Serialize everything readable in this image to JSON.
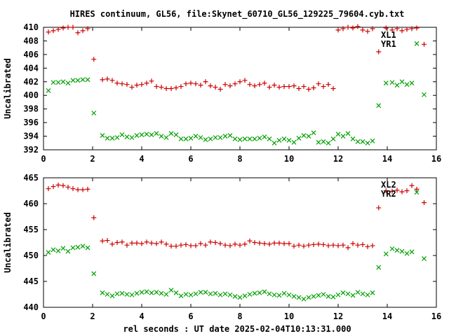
{
  "chart_data": {
    "type": "scatter",
    "title": "HIRES continuum, GL56, file:Skynet_60710_GL56_129225_79604.cyb.txt",
    "xlabel": "rel seconds : UT date 2025-02-04T10:13:31.000",
    "colors": {
      "red": "#cc0000",
      "green": "#00a000"
    },
    "panels": [
      {
        "ylabel": "Uncalibrated",
        "xlim": [
          0,
          16
        ],
        "ylim": [
          392,
          410
        ],
        "xticks": [
          "0",
          "2",
          "4",
          "6",
          "8",
          "10",
          "12",
          "14",
          "16"
        ],
        "yticks": [
          "392",
          "394",
          "396",
          "398",
          "400",
          "402",
          "404",
          "406",
          "408",
          "410"
        ],
        "x": [
          0.2,
          0.4,
          0.6,
          0.8,
          1.0,
          1.2,
          1.4,
          1.6,
          1.8,
          2.05,
          2.4,
          2.6,
          2.8,
          3.0,
          3.2,
          3.4,
          3.6,
          3.8,
          4.0,
          4.2,
          4.4,
          4.6,
          4.8,
          5.0,
          5.2,
          5.4,
          5.6,
          5.8,
          6.0,
          6.2,
          6.4,
          6.6,
          6.8,
          7.0,
          7.2,
          7.4,
          7.6,
          7.8,
          8.0,
          8.2,
          8.4,
          8.6,
          8.8,
          9.0,
          9.2,
          9.4,
          9.6,
          9.8,
          10.0,
          10.2,
          10.4,
          10.6,
          10.8,
          11.0,
          11.2,
          11.4,
          11.6,
          11.8,
          12.0,
          12.2,
          12.4,
          12.6,
          12.8,
          13.0,
          13.2,
          13.4,
          13.65,
          13.95,
          14.2,
          14.4,
          14.6,
          14.8,
          15.0,
          15.2,
          15.5
        ],
        "series": [
          {
            "name": "XL1",
            "color_key": "red",
            "marker": "plus",
            "values": [
              409.3,
              409.5,
              409.7,
              409.9,
              410.0,
              410.0,
              409.2,
              409.5,
              409.8,
              405.3,
              402.3,
              402.4,
              402.2,
              401.8,
              401.7,
              401.6,
              401.2,
              401.5,
              401.6,
              401.8,
              402.1,
              401.3,
              401.2,
              401.0,
              401.0,
              401.1,
              401.3,
              401.7,
              401.8,
              401.7,
              401.5,
              402.0,
              401.4,
              401.2,
              400.9,
              401.6,
              401.4,
              401.7,
              402.0,
              402.2,
              401.6,
              401.4,
              401.6,
              401.8,
              401.2,
              401.5,
              401.2,
              401.3,
              401.3,
              401.4,
              401.0,
              401.3,
              400.9,
              401.1,
              401.7,
              401.3,
              401.6,
              401.0,
              409.6,
              409.8,
              410.0,
              409.9,
              410.1,
              409.6,
              409.4,
              409.8,
              406.4,
              409.9,
              409.6,
              409.8,
              409.5,
              409.7,
              409.8,
              409.9,
              407.5
            ]
          },
          {
            "name": "YR1",
            "color_key": "green",
            "marker": "x",
            "values": [
              400.7,
              401.9,
              401.9,
              402.0,
              401.8,
              402.2,
              402.2,
              402.3,
              402.3,
              397.4,
              394.1,
              393.7,
              393.7,
              393.8,
              394.2,
              393.9,
              393.8,
              394.1,
              394.2,
              394.3,
              394.2,
              394.4,
              394.0,
              393.8,
              394.4,
              394.2,
              393.6,
              393.6,
              393.7,
              394.0,
              393.8,
              393.5,
              393.6,
              393.8,
              393.8,
              394.0,
              394.1,
              393.6,
              393.5,
              393.6,
              393.6,
              393.6,
              393.7,
              393.9,
              393.6,
              393.0,
              393.4,
              393.6,
              393.4,
              393.1,
              393.7,
              394.1,
              394.0,
              394.5,
              393.1,
              393.2,
              393.0,
              393.6,
              394.3,
              394.0,
              394.4,
              393.6,
              393.2,
              393.2,
              393.0,
              393.3,
              398.5,
              401.8,
              401.9,
              401.5,
              402.0,
              401.6,
              401.8,
              407.6,
              400.1
            ]
          }
        ]
      },
      {
        "ylabel": "Uncalibrated",
        "xlim": [
          0,
          16
        ],
        "ylim": [
          440,
          465
        ],
        "xticks": [
          "0",
          "2",
          "4",
          "6",
          "8",
          "10",
          "12",
          "14",
          "16"
        ],
        "yticks": [
          "440",
          "445",
          "450",
          "455",
          "460",
          "465"
        ],
        "x": [
          0.2,
          0.4,
          0.6,
          0.8,
          1.0,
          1.2,
          1.4,
          1.6,
          1.8,
          2.05,
          2.4,
          2.6,
          2.8,
          3.0,
          3.2,
          3.4,
          3.6,
          3.8,
          4.0,
          4.2,
          4.4,
          4.6,
          4.8,
          5.0,
          5.2,
          5.4,
          5.6,
          5.8,
          6.0,
          6.2,
          6.4,
          6.6,
          6.8,
          7.0,
          7.2,
          7.4,
          7.6,
          7.8,
          8.0,
          8.2,
          8.4,
          8.6,
          8.8,
          9.0,
          9.2,
          9.4,
          9.6,
          9.8,
          10.0,
          10.2,
          10.4,
          10.6,
          10.8,
          11.0,
          11.2,
          11.4,
          11.6,
          11.8,
          12.0,
          12.2,
          12.4,
          12.6,
          12.8,
          13.0,
          13.2,
          13.4,
          13.65,
          13.95,
          14.2,
          14.4,
          14.6,
          14.8,
          15.0,
          15.2,
          15.5
        ],
        "series": [
          {
            "name": "XL2",
            "color_key": "red",
            "marker": "plus",
            "values": [
              462.9,
              463.3,
              463.6,
              463.5,
              463.2,
              462.9,
              462.7,
              462.7,
              462.8,
              457.3,
              452.8,
              452.9,
              452.2,
              452.5,
              452.6,
              452.0,
              452.4,
              452.4,
              452.3,
              452.6,
              452.4,
              452.3,
              452.6,
              452.2,
              451.8,
              451.8,
              452.0,
              452.1,
              451.9,
              451.9,
              452.3,
              452.0,
              452.6,
              452.5,
              452.3,
              452.0,
              451.9,
              452.2,
              452.0,
              452.2,
              452.8,
              452.5,
              452.4,
              452.3,
              452.2,
              452.4,
              452.4,
              452.3,
              452.3,
              451.8,
              452.0,
              451.8,
              452.0,
              452.1,
              452.2,
              452.1,
              451.9,
              452.0,
              451.9,
              452.0,
              451.5,
              452.3,
              452.0,
              452.1,
              451.7,
              451.9,
              459.2,
              462.5,
              462.4,
              462.6,
              462.3,
              462.5,
              463.5,
              462.8,
              460.2
            ]
          },
          {
            "name": "YR2",
            "color_key": "green",
            "marker": "x",
            "values": [
              450.6,
              451.1,
              450.9,
              451.4,
              450.8,
              451.5,
              451.6,
              451.8,
              451.5,
              446.5,
              442.8,
              442.5,
              442.2,
              442.6,
              442.7,
              442.5,
              442.4,
              442.7,
              442.9,
              443.0,
              442.8,
              442.9,
              442.7,
              442.5,
              443.3,
              442.8,
              442.2,
              442.5,
              442.4,
              442.6,
              442.9,
              442.9,
              442.6,
              442.7,
              442.4,
              442.6,
              442.4,
              442.1,
              441.9,
              442.2,
              442.5,
              442.7,
              442.8,
              443.0,
              442.6,
              442.4,
              442.3,
              442.7,
              442.4,
              442.1,
              441.9,
              441.6,
              441.9,
              442.1,
              442.3,
              442.5,
              442.1,
              442.0,
              442.4,
              442.8,
              442.6,
              442.3,
              442.9,
              442.6,
              442.4,
              442.8,
              447.7,
              450.3,
              451.3,
              451.0,
              450.8,
              450.4,
              450.7,
              462.2,
              449.4
            ]
          }
        ]
      }
    ]
  }
}
